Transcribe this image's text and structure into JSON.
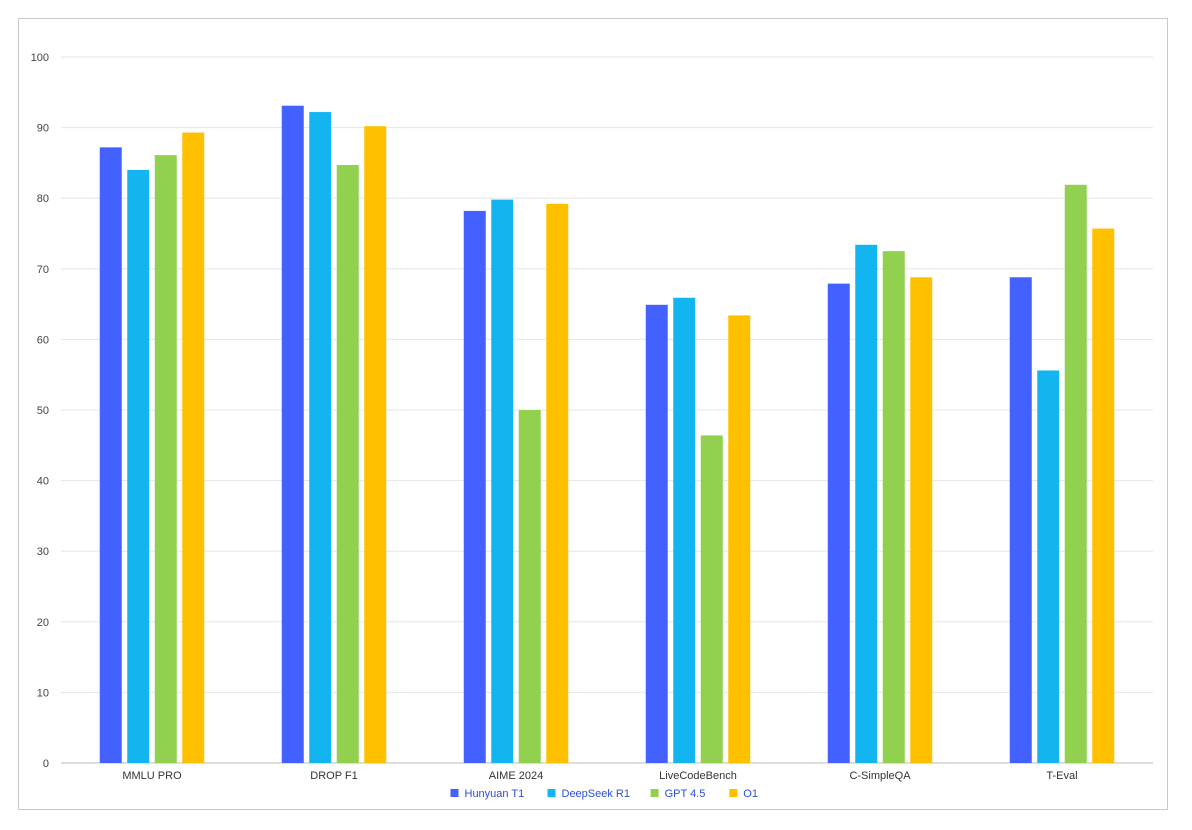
{
  "chart_data": {
    "type": "bar",
    "categories": [
      "MMLU PRO",
      "DROP F1",
      "AIME 2024",
      "LiveCodeBench",
      "C-SimpleQA",
      "T-Eval"
    ],
    "series": [
      {
        "name": "Hunyuan T1",
        "color": "#4361ff",
        "values": [
          87.2,
          93.1,
          78.2,
          64.9,
          67.9,
          68.8
        ]
      },
      {
        "name": "DeepSeek R1",
        "color": "#12b5ef",
        "values": [
          84.0,
          92.2,
          79.8,
          65.9,
          73.4,
          55.6
        ]
      },
      {
        "name": "GPT 4.5",
        "color": "#92d050",
        "values": [
          86.1,
          84.7,
          50.0,
          46.4,
          72.5,
          81.9
        ]
      },
      {
        "name": "O1",
        "color": "#ffc000",
        "values": [
          89.3,
          90.2,
          79.2,
          63.4,
          68.8,
          75.7
        ]
      }
    ],
    "yticks": [
      "0",
      "10",
      "20",
      "30",
      "40",
      "50",
      "60",
      "70",
      "80",
      "90",
      "100"
    ],
    "ylim": [
      0,
      100
    ],
    "grid": true,
    "legend_position": "bottom"
  }
}
